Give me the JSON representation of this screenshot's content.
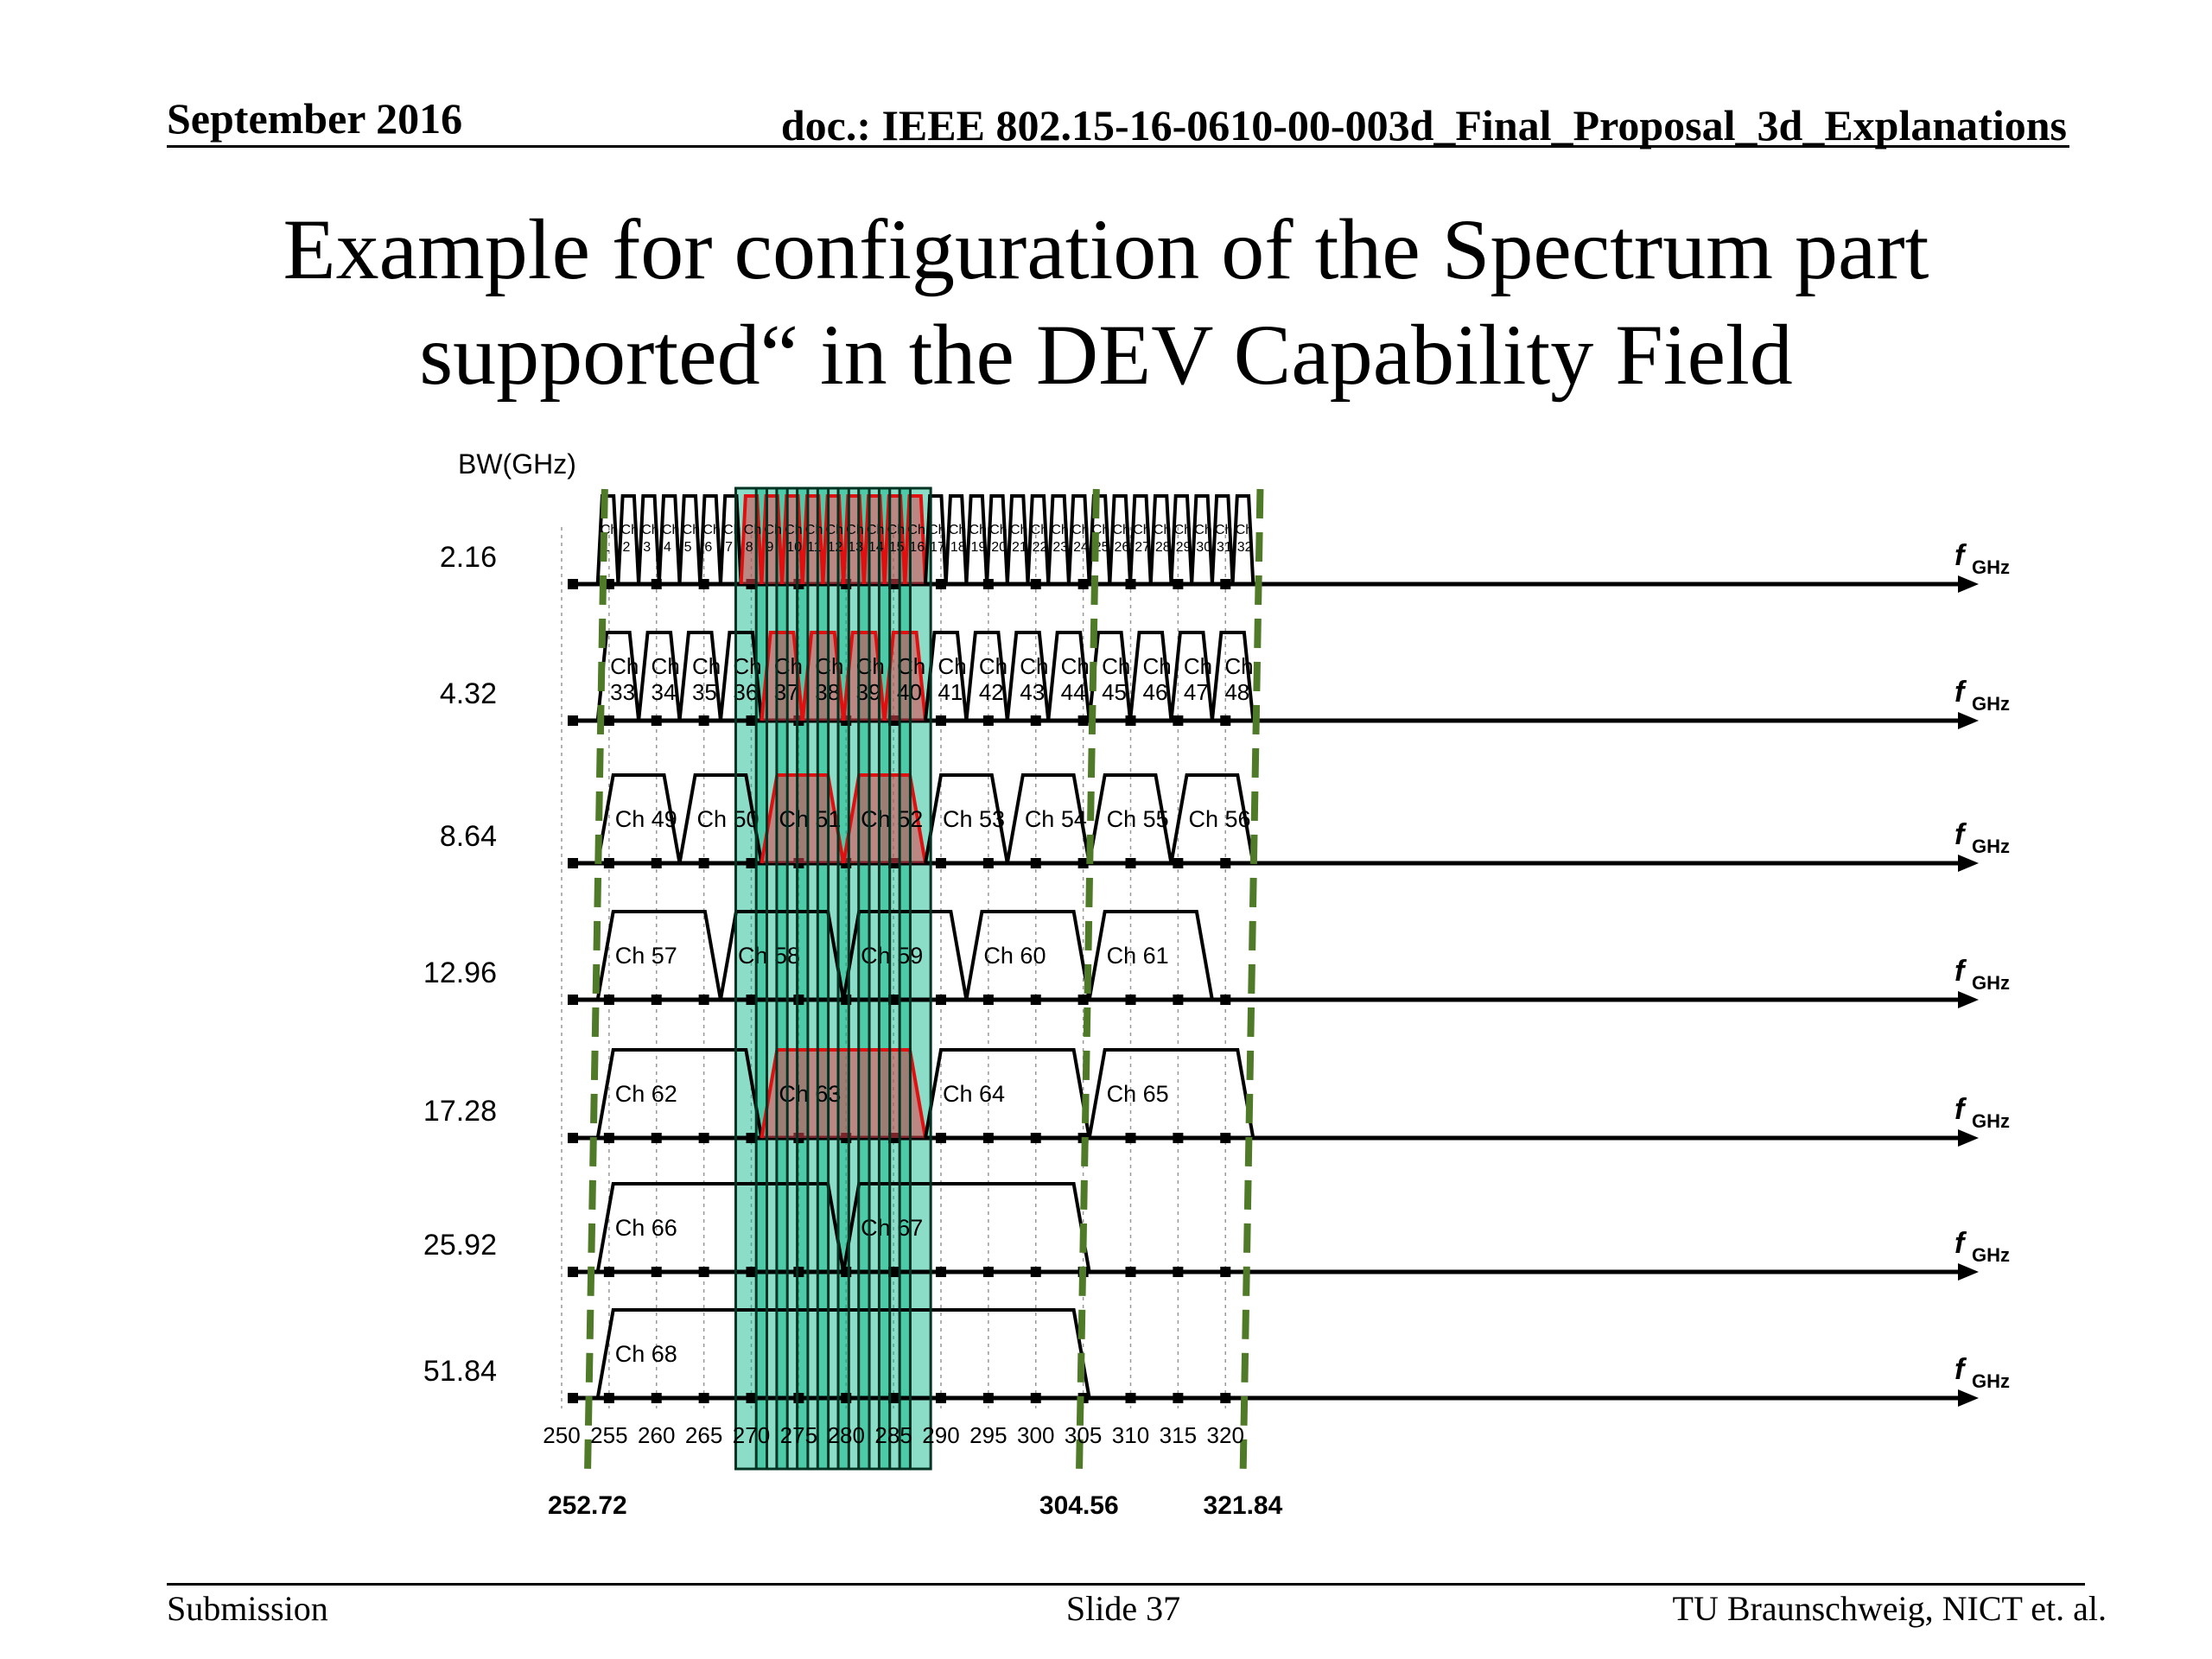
{
  "header": {
    "date": "September 2016",
    "doc": "doc.: IEEE 802.15-16-0610-00-003d_Final_Proposal_3d_Explanations"
  },
  "title": {
    "line1": "Example for configuration of the Spectrum part",
    "line2": "supported“ in the DEV Capability Field"
  },
  "diagram": {
    "y_axis_label": "BW(GHz)",
    "axis_unit_main": "f",
    "axis_unit_sub": "GHz",
    "freq_ticks": [
      250,
      255,
      260,
      265,
      270,
      275,
      280,
      285,
      290,
      295,
      300,
      305,
      310,
      315,
      320
    ],
    "boundary_markers": [
      "252.72",
      "304.56",
      "321.84"
    ],
    "highlight_color": "#00b383",
    "selected_color": "#e0404a",
    "boundary_color": "#4f7a28",
    "rows": [
      {
        "bw": "2.16",
        "channels": [
          "1",
          "2",
          "3",
          "4",
          "5",
          "6",
          "7",
          "8",
          "9",
          "10",
          "11",
          "12",
          "13",
          "14",
          "15",
          "16",
          "17",
          "18",
          "19",
          "20",
          "21",
          "22",
          "23",
          "24",
          "25",
          "26",
          "27",
          "28",
          "29",
          "30",
          "31",
          "32"
        ],
        "selected": [
          "8",
          "9",
          "10",
          "11",
          "12",
          "13",
          "14",
          "15",
          "16"
        ]
      },
      {
        "bw": "4.32",
        "channels": [
          "33",
          "34",
          "35",
          "36",
          "37",
          "38",
          "39",
          "40",
          "41",
          "42",
          "43",
          "44",
          "45",
          "46",
          "47",
          "48"
        ],
        "selected": [
          "37",
          "38",
          "39",
          "40"
        ]
      },
      {
        "bw": "8.64",
        "channels": [
          "49",
          "50",
          "51",
          "52",
          "53",
          "54",
          "55",
          "56"
        ],
        "selected": [
          "51",
          "52"
        ]
      },
      {
        "bw": "12.96",
        "channels": [
          "57",
          "58",
          "59",
          "60",
          "61"
        ],
        "selected": []
      },
      {
        "bw": "17.28",
        "channels": [
          "62",
          "63",
          "64",
          "65"
        ],
        "selected": [
          "63"
        ]
      },
      {
        "bw": "25.92",
        "channels": [
          "66",
          "67"
        ],
        "selected": []
      },
      {
        "bw": "51.84",
        "channels": [
          "68"
        ],
        "selected": []
      }
    ]
  },
  "footer": {
    "left": "Submission",
    "center": "Slide 37",
    "right": "TU Braunschweig, NICT et. al."
  }
}
